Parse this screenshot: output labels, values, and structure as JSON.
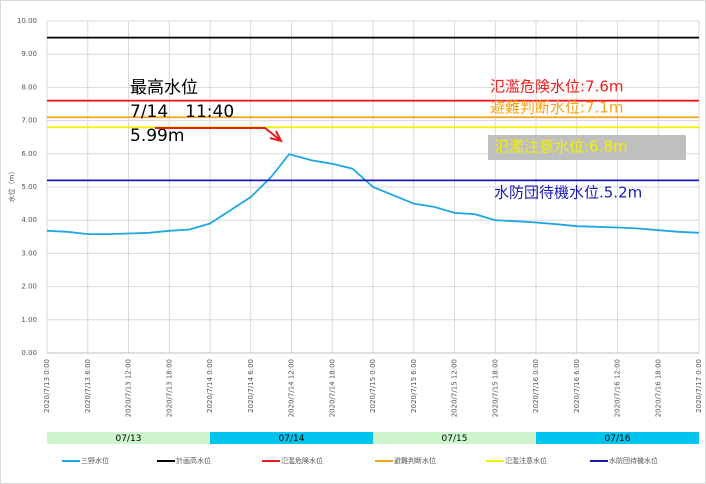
{
  "chart_data": {
    "type": "line",
    "ylabel": "水位（m）",
    "ylim": [
      0,
      10
    ],
    "yticks": [
      {
        "value": 0,
        "label": "0.00"
      },
      {
        "value": 1,
        "label": "1.00"
      },
      {
        "value": 2,
        "label": "2.00"
      },
      {
        "value": 3,
        "label": "3.00"
      },
      {
        "value": 4,
        "label": "4.00"
      },
      {
        "value": 5,
        "label": "5.00"
      },
      {
        "value": 6,
        "label": "6.00"
      },
      {
        "value": 7,
        "label": "7.00"
      },
      {
        "value": 8,
        "label": "8.00"
      },
      {
        "value": 9,
        "label": "9.00"
      },
      {
        "value": 10,
        "label": "10.00"
      }
    ],
    "xlim": [
      "2020/7/13 0:00",
      "2020/7/17 0:00"
    ],
    "xticks": [
      "2020/7/13 0:00",
      "2020/7/13 6:00",
      "2020/7/13 12:00",
      "2020/7/13 18:00",
      "2020/7/14 0:00",
      "2020/7/14 6:00",
      "2020/7/14 12:00",
      "2020/7/14 18:00",
      "2020/7/15 0:00",
      "2020/7/15 6:00",
      "2020/7/15 12:00",
      "2020/7/15 18:00",
      "2020/7/16 0:00",
      "2020/7/16 6:00",
      "2020/7/16 12:00",
      "2020/7/16 18:00",
      "2020/7/17 0:00"
    ],
    "grid": true,
    "series": [
      {
        "name": "三野水位",
        "color": "#1fa8e0",
        "x": [
          "2020/7/13 0:00",
          "2020/7/13 3:00",
          "2020/7/13 6:00",
          "2020/7/13 9:00",
          "2020/7/13 12:00",
          "2020/7/13 15:00",
          "2020/7/13 18:00",
          "2020/7/13 21:00",
          "2020/7/14 0:00",
          "2020/7/14 3:00",
          "2020/7/14 6:00",
          "2020/7/14 9:00",
          "2020/7/14 11:40",
          "2020/7/14 15:00",
          "2020/7/14 18:00",
          "2020/7/14 21:00",
          "2020/7/15 0:00",
          "2020/7/15 3:00",
          "2020/7/15 6:00",
          "2020/7/15 9:00",
          "2020/7/15 12:00",
          "2020/7/15 15:00",
          "2020/7/15 18:00",
          "2020/7/15 21:00",
          "2020/7/16 0:00",
          "2020/7/16 3:00",
          "2020/7/16 6:00",
          "2020/7/16 9:00",
          "2020/7/16 12:00",
          "2020/7/16 15:00",
          "2020/7/16 18:00",
          "2020/7/16 21:00",
          "2020/7/17 0:00"
        ],
        "values": [
          3.68,
          3.65,
          3.58,
          3.58,
          3.6,
          3.62,
          3.68,
          3.72,
          3.9,
          4.3,
          4.7,
          5.3,
          5.99,
          5.8,
          5.7,
          5.55,
          5.0,
          4.75,
          4.5,
          4.4,
          4.22,
          4.18,
          4.0,
          3.97,
          3.93,
          3.88,
          3.82,
          3.8,
          3.78,
          3.75,
          3.7,
          3.65,
          3.62
        ]
      },
      {
        "name": "計画高水位",
        "color": "#000000",
        "value": 9.5
      },
      {
        "name": "氾濫危険水位",
        "color": "#ee1c1c",
        "value": 7.6,
        "label": "氾濫危険水位:7.6m"
      },
      {
        "name": "避難判断水位",
        "color": "#f5a31a",
        "value": 7.1,
        "label": "避難判断水位:7.1m"
      },
      {
        "name": "氾濫注意水位",
        "color": "#f2f200",
        "value": 6.8,
        "label": "氾濫注意水位:6.8m"
      },
      {
        "name": "水防団待機水位",
        "color": "#1a1ab4",
        "value": 5.2,
        "label": "水防団待機水位.5.2m"
      }
    ],
    "annotation": [
      "最高水位",
      "7/14　11:40",
      "5.99m"
    ],
    "day_bands": [
      {
        "label": "07/13",
        "color": "#ccf5cc"
      },
      {
        "label": "07/14",
        "color": "#00c4ee"
      },
      {
        "label": "07/15",
        "color": "#ccf5cc"
      },
      {
        "label": "07/16",
        "color": "#00c4ee"
      }
    ]
  }
}
